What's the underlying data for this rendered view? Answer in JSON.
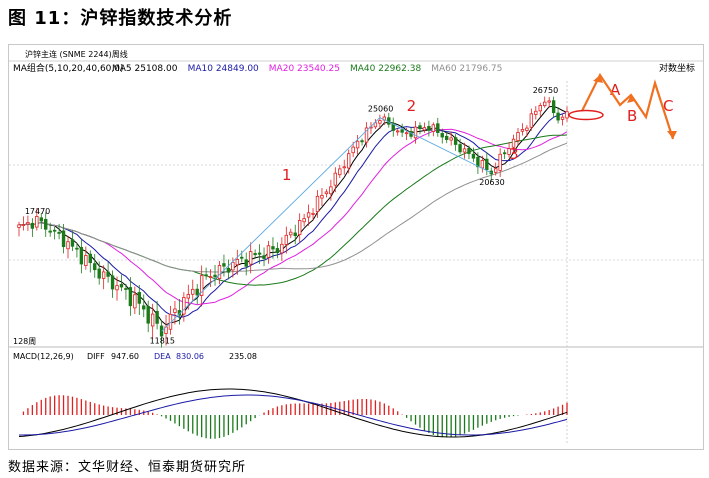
{
  "figure": {
    "title": "图 11：沪锌指数技术分析",
    "source": "数据来源：文华财经、恒泰期货研究所"
  },
  "chart_data": {
    "type": "candlestick",
    "instrument": "沪锌主连 (SNME 2244)周线",
    "period_label": "128周",
    "scale_label": "对数坐标",
    "ma_panel": {
      "label": "MA组合(5,10,20,40,60,0)",
      "items": [
        {
          "name": "MA5",
          "value": "25108.00",
          "color": "#000000"
        },
        {
          "name": "MA10",
          "value": "24849.00",
          "color": "#1a1aa6"
        },
        {
          "name": "MA20",
          "value": "23540.25",
          "color": "#e020e0"
        },
        {
          "name": "MA40",
          "value": "22962.38",
          "color": "#1a7a1a"
        },
        {
          "name": "MA60",
          "value": "21796.75",
          "color": "#909090"
        }
      ]
    },
    "price_range": [
      11500,
      28500
    ],
    "price_labels": [
      {
        "text": "17470",
        "value": 17470,
        "index": 4
      },
      {
        "text": "11815",
        "value": 11815,
        "index": 32
      },
      {
        "text": "25060",
        "value": 25060,
        "index": 81
      },
      {
        "text": "20630",
        "value": 20630,
        "index": 106
      },
      {
        "text": "26750",
        "value": 26750,
        "index": 118
      }
    ],
    "wave_labels": [
      "1",
      "2",
      "3",
      "A",
      "B",
      "C"
    ],
    "macd_panel": {
      "label": "MACD(12,26,9)",
      "diff_label": "DIFF",
      "diff_value": "947.60",
      "dea_label": "DEA",
      "dea_value": "830.06",
      "macd_value": "235.08",
      "diff_color": "#000000",
      "dea_color": "#1a1aa6"
    },
    "colors": {
      "up": "#e02020",
      "down": "#1a7a1a",
      "wave_line": "#5aa8e0",
      "projection": "#f07020"
    }
  }
}
